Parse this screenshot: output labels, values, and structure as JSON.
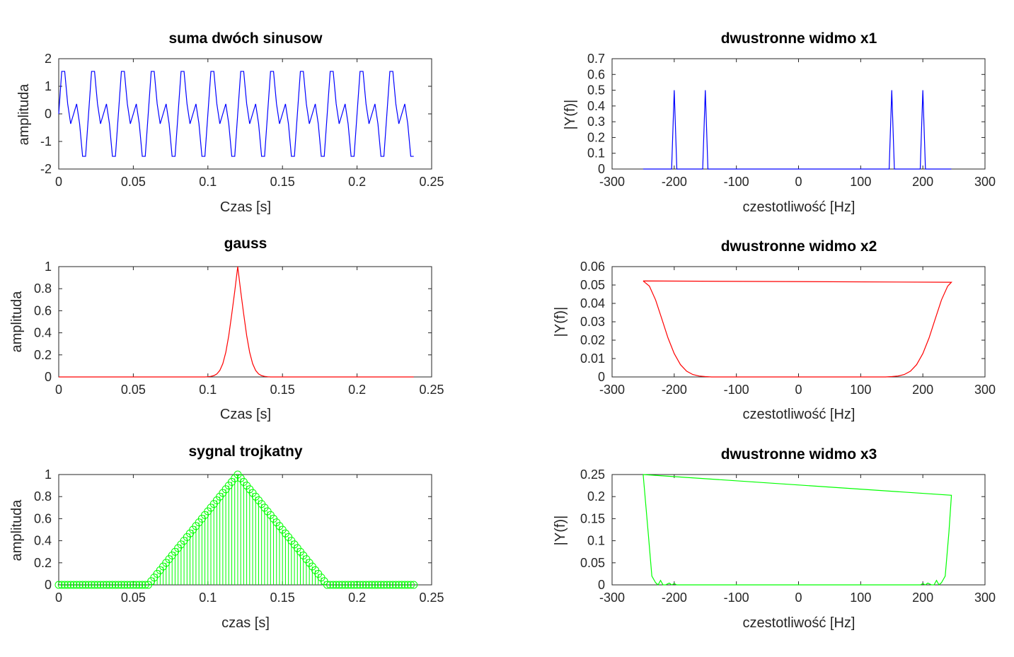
{
  "chart_data": [
    {
      "type": "line",
      "title": "suma dwóch sinusow",
      "xlabel": "Czas [s]",
      "ylabel": "amplituda",
      "xlim": [
        0,
        0.25
      ],
      "ylim": [
        -2,
        2
      ],
      "xticks": [
        0,
        0.05,
        0.1,
        0.15,
        0.2,
        0.25
      ],
      "xtick_labels": [
        "0",
        "0.05",
        "0.1",
        "0.15",
        "0.2",
        "0.25"
      ],
      "yticks": [
        -2,
        -1,
        0,
        1,
        2
      ],
      "ytick_labels": [
        "-2",
        "-1",
        "0",
        "1",
        "2"
      ],
      "color": "#0000ff",
      "series": [
        {
          "x": [
            0,
            0.002,
            0.004,
            0.006,
            0.008,
            0.01,
            0.012,
            0.014,
            0.016,
            0.018,
            0.02,
            0.022,
            0.024,
            0.026,
            0.028,
            0.03,
            0.032,
            0.034,
            0.036,
            0.038,
            0.04,
            0.042,
            0.044,
            0.046,
            0.048,
            0.05,
            0.052,
            0.054,
            0.056,
            0.058,
            0.06,
            0.062,
            0.064,
            0.066,
            0.068,
            0.07,
            0.072,
            0.074,
            0.076,
            0.078,
            0.08,
            0.082,
            0.084,
            0.086,
            0.088,
            0.09,
            0.092,
            0.094,
            0.096,
            0.098,
            0.1,
            0.102,
            0.104,
            0.106,
            0.108,
            0.11,
            0.112,
            0.114,
            0.116,
            0.118,
            0.12,
            0.122,
            0.124,
            0.126,
            0.128,
            0.13,
            0.132,
            0.134,
            0.136,
            0.138,
            0.14,
            0.142,
            0.144,
            0.146,
            0.148,
            0.15,
            0.152,
            0.154,
            0.156,
            0.158,
            0.16,
            0.162,
            0.164,
            0.166,
            0.168,
            0.17,
            0.172,
            0.174,
            0.176,
            0.178,
            0.18,
            0.182,
            0.184,
            0.186,
            0.188,
            0.19,
            0.192,
            0.194,
            0.196,
            0.198,
            0.2,
            0.202,
            0.204,
            0.206,
            0.208,
            0.21,
            0.212,
            0.214,
            0.216,
            0.218,
            0.22,
            0.222,
            0.224,
            0.226,
            0.228,
            0.23,
            0.232,
            0.234,
            0.236,
            0.238
          ],
          "y": [
            0,
            1.54,
            1.54,
            0.36,
            -0.36,
            0,
            0.36,
            -0.36,
            -1.54,
            -1.54,
            0,
            1.54,
            1.54,
            0.36,
            -0.36,
            0,
            0.36,
            -0.36,
            -1.54,
            -1.54,
            0,
            1.54,
            1.54,
            0.36,
            -0.36,
            0,
            0.36,
            -0.36,
            -1.54,
            -1.54,
            0,
            1.54,
            1.54,
            0.36,
            -0.36,
            0,
            0.36,
            -0.36,
            -1.54,
            -1.54,
            0,
            1.54,
            1.54,
            0.36,
            -0.36,
            0,
            0.36,
            -0.36,
            -1.54,
            -1.54,
            0,
            1.54,
            1.54,
            0.36,
            -0.36,
            0,
            0.36,
            -0.36,
            -1.54,
            -1.54,
            0,
            1.54,
            1.54,
            0.36,
            -0.36,
            0,
            0.36,
            -0.36,
            -1.54,
            -1.54,
            0,
            1.54,
            1.54,
            0.36,
            -0.36,
            0,
            0.36,
            -0.36,
            -1.54,
            -1.54,
            0,
            1.54,
            1.54,
            0.36,
            -0.36,
            0,
            0.36,
            -0.36,
            -1.54,
            -1.54,
            0,
            1.54,
            1.54,
            0.36,
            -0.36,
            0,
            0.36,
            -0.36,
            -1.54,
            -1.54,
            0,
            1.54,
            1.54,
            0.36,
            -0.36,
            0,
            0.36,
            -0.36,
            -1.54,
            -1.54,
            0,
            1.54,
            1.54,
            0.36,
            -0.36,
            0,
            0.36,
            -0.36,
            -1.54,
            -1.54
          ]
        }
      ]
    },
    {
      "type": "line",
      "title": "dwustronne widmo x1",
      "xlabel": "czestotliwość [Hz]",
      "ylabel": "|Y(f)|",
      "xlim": [
        -300,
        300
      ],
      "ylim": [
        0,
        0.7
      ],
      "xticks": [
        -300,
        -200,
        -100,
        0,
        100,
        200,
        300
      ],
      "xtick_labels": [
        "-300",
        "-200",
        "-100",
        "0",
        "100",
        "200",
        "300"
      ],
      "yticks": [
        0,
        0.1,
        0.2,
        0.3,
        0.4,
        0.5,
        0.6,
        0.7
      ],
      "ytick_labels": [
        "0",
        "0.1",
        "0.2",
        "0.3",
        "0.4",
        "0.5",
        "0.6",
        "0.7"
      ],
      "color": "#0000ff",
      "series": [
        {
          "x": [
            -250,
            -204.2,
            -200,
            -195.8,
            -154.2,
            -150,
            -145.8,
            145.8,
            150,
            154.2,
            195.8,
            200,
            204.2,
            245.8
          ],
          "y": [
            0,
            0,
            0.5,
            0,
            0,
            0.5,
            0,
            0,
            0.5,
            0,
            0,
            0.5,
            0,
            0
          ]
        }
      ]
    },
    {
      "type": "line",
      "title": "gauss",
      "xlabel": "Czas [s]",
      "ylabel": "amplituda",
      "xlim": [
        0,
        0.25
      ],
      "ylim": [
        0,
        1
      ],
      "xticks": [
        0,
        0.05,
        0.1,
        0.15,
        0.2,
        0.25
      ],
      "xtick_labels": [
        "0",
        "0.05",
        "0.1",
        "0.15",
        "0.2",
        "0.25"
      ],
      "yticks": [
        0,
        0.2,
        0.4,
        0.6,
        0.8,
        1
      ],
      "ytick_labels": [
        "0",
        "0.2",
        "0.4",
        "0.6",
        "0.8",
        "1"
      ],
      "color": "#ff0000",
      "series": [
        {
          "x": [
            0,
            0.098,
            0.1,
            0.102,
            0.104,
            0.106,
            0.108,
            0.11,
            0.112,
            0.114,
            0.116,
            0.118,
            0.12,
            0.122,
            0.124,
            0.126,
            0.128,
            0.13,
            0.132,
            0.134,
            0.136,
            0.138,
            0.14,
            0.142,
            0.238
          ],
          "y": [
            0,
            0,
            0.002,
            0.005,
            0.012,
            0.027,
            0.059,
            0.12,
            0.223,
            0.375,
            0.57,
            0.776,
            1,
            0.776,
            0.57,
            0.375,
            0.223,
            0.12,
            0.059,
            0.027,
            0.012,
            0.005,
            0.002,
            0,
            0
          ]
        }
      ]
    },
    {
      "type": "line",
      "title": "dwustronne widmo x2",
      "xlabel": "czestotliwość [Hz]",
      "ylabel": "|Y(f)|",
      "xlim": [
        -300,
        300
      ],
      "ylim": [
        0,
        0.06
      ],
      "xticks": [
        -300,
        -200,
        -100,
        0,
        100,
        200,
        300
      ],
      "xtick_labels": [
        "-300",
        "-200",
        "-100",
        "0",
        "100",
        "200",
        "300"
      ],
      "yticks": [
        0,
        0.01,
        0.02,
        0.03,
        0.04,
        0.05,
        0.06
      ],
      "ytick_labels": [
        "0",
        "0.01",
        "0.02",
        "0.03",
        "0.04",
        "0.05",
        "0.06"
      ],
      "color": "#ff0000",
      "series": [
        {
          "x": [
            -250,
            -240,
            -230,
            -220,
            -210,
            -200,
            -190,
            -180,
            -170,
            -160,
            -150,
            -140,
            140,
            150,
            160,
            170,
            180,
            190,
            200,
            210,
            220,
            230,
            240,
            246,
            -250
          ],
          "y": [
            0.0522,
            0.0494,
            0.0419,
            0.0316,
            0.0212,
            0.0127,
            0.0067,
            0.0031,
            0.0013,
            0.0005,
            0.0002,
            0,
            0,
            0.0002,
            0.0005,
            0.0013,
            0.0031,
            0.0067,
            0.0127,
            0.0212,
            0.0316,
            0.0419,
            0.0494,
            0.0515,
            0.0522
          ]
        }
      ]
    },
    {
      "type": "scatter",
      "title": "sygnal trojkatny",
      "xlabel": "czas [s]",
      "ylabel": "amplituda",
      "xlim": [
        0,
        0.25
      ],
      "ylim": [
        0,
        1
      ],
      "xticks": [
        0,
        0.05,
        0.1,
        0.15,
        0.2,
        0.25
      ],
      "xtick_labels": [
        "0",
        "0.05",
        "0.1",
        "0.15",
        "0.2",
        "0.25"
      ],
      "yticks": [
        0,
        0.2,
        0.4,
        0.6,
        0.8,
        1
      ],
      "ytick_labels": [
        "0",
        "0.2",
        "0.4",
        "0.6",
        "0.8",
        "1"
      ],
      "color": "#00ff00",
      "stem": true,
      "series": [
        {
          "x_start": 0,
          "x_step": 0.002,
          "count": 120,
          "peak_x": 0.12,
          "half_width": 0.06,
          "y_rule": "triangle: max(0, 1 - |x - peak_x| / half_width)"
        }
      ]
    },
    {
      "type": "line",
      "title": "dwustronne widmo x3",
      "xlabel": "czestotliwość [Hz]",
      "ylabel": "|Y(f)|",
      "xlim": [
        -300,
        300
      ],
      "ylim": [
        0,
        0.25
      ],
      "xticks": [
        -300,
        -200,
        -100,
        0,
        100,
        200,
        300
      ],
      "xtick_labels": [
        "-300",
        "-200",
        "-100",
        "0",
        "100",
        "200",
        "300"
      ],
      "yticks": [
        0,
        0.05,
        0.1,
        0.15,
        0.2,
        0.25
      ],
      "ytick_labels": [
        "0",
        "0.05",
        "0.1",
        "0.15",
        "0.2",
        "0.25"
      ],
      "color": "#00ff00",
      "series": [
        {
          "x": [
            -250,
            -242,
            -236,
            -230,
            -226,
            -222,
            -218,
            -214,
            -208,
            -204,
            -200,
            -196,
            -190,
            190,
            196,
            200,
            204,
            208,
            214,
            218,
            222,
            226,
            230,
            236,
            242,
            246,
            -250
          ],
          "y": [
            0.25,
            0.12,
            0.02,
            0.005,
            0.0,
            0.01,
            0.0,
            0.0,
            0.004,
            0.0,
            0.003,
            0.0,
            0.0,
            0.0,
            0.0,
            0.003,
            0.0,
            0.004,
            0.0,
            0.0,
            0.01,
            0.0,
            0.005,
            0.02,
            0.12,
            0.203,
            0.25
          ]
        }
      ]
    }
  ]
}
